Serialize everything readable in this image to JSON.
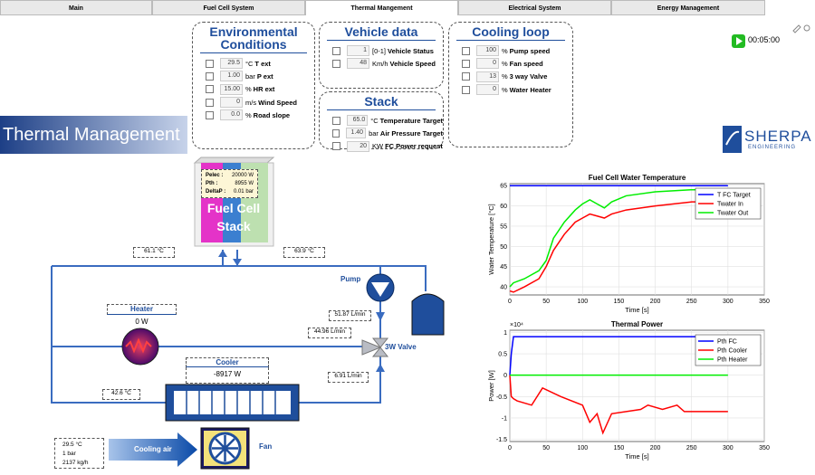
{
  "tabs": [
    "Main",
    "Fuel Cell System",
    "Thermal Mangement",
    "Electrical System",
    "Energy Management"
  ],
  "timer": "00:05:00",
  "banner": "Thermal Management",
  "logo": {
    "name": "SHERPA",
    "tagline": "ENGINEERING"
  },
  "panels": [
    {
      "title": "Environmental Conditions",
      "rows": [
        {
          "value": "29.5",
          "unit": "°C",
          "label": "T ext"
        },
        {
          "value": "1.00",
          "unit": "bar",
          "label": "P ext"
        },
        {
          "value": "15.00",
          "unit": "%",
          "label": "HR ext"
        },
        {
          "value": "0",
          "unit": "m/s",
          "label": "Wind Speed"
        },
        {
          "value": "0.0",
          "unit": "%",
          "label": "Road slope"
        }
      ]
    },
    {
      "title": "Vehicle data",
      "rows": [
        {
          "value": "1",
          "unit": "[0-1]",
          "label": "Vehicle Status"
        },
        {
          "value": "48",
          "unit": "Km/h",
          "label": "Vehicle Speed"
        }
      ]
    },
    {
      "title": "Stack",
      "rows": [
        {
          "value": "65.0",
          "unit": "°C",
          "label": "Temperature Target"
        },
        {
          "value": "1.40",
          "unit": "bar",
          "label": "Air Pressure Target"
        },
        {
          "value": "20",
          "unit": "KW",
          "label": "FC Power request"
        }
      ]
    },
    {
      "title": "Cooling loop",
      "rows": [
        {
          "value": "100",
          "unit": "%",
          "label": "Pump speed"
        },
        {
          "value": "0",
          "unit": "%",
          "label": "Fan speed"
        },
        {
          "value": "13",
          "unit": "%",
          "label": "3 way Valve"
        },
        {
          "value": "0",
          "unit": "%",
          "label": "Water Heater"
        }
      ]
    }
  ],
  "diagram": {
    "stack_info": [
      {
        "label": "Pelec :",
        "value": "20000 W"
      },
      {
        "label": "Pth :",
        "value": "8955 W"
      },
      {
        "label": "DeltaP :",
        "value": "0.01 bar"
      }
    ],
    "stack": "Fuel Cell Stack",
    "t_stack_in": "61.1 °C",
    "t_stack_out": "63.9 °C",
    "pump": "Pump",
    "heater": "Heater",
    "heater_power": "0 W",
    "flow_pump": "51.87 L/min",
    "flow_heater": "44.96 L/min",
    "valve": "3W Valve",
    "cooler": "Cooler",
    "cooler_power": "-8917 W",
    "flow_cooler": "6.91 L/min",
    "t_cooler_out": "42.6 °C",
    "air_in": [
      "29.5 °C",
      "1 bar",
      "2137 kg/h"
    ],
    "cooling_air": "Cooling air",
    "fan": "Fan"
  },
  "chart_data": [
    {
      "type": "line",
      "title": "Fuel Cell Water Temperature",
      "xlabel": "Time [s]",
      "ylabel": "Water Temperature [°C]",
      "x": [
        0,
        5,
        20,
        40,
        50,
        60,
        75,
        90,
        100,
        110,
        120,
        130,
        140,
        160,
        200,
        250,
        300
      ],
      "series": [
        {
          "name": "T FC Target",
          "color": "#0000ff",
          "values": [
            65,
            65,
            65,
            65,
            65,
            65,
            65,
            65,
            65,
            65,
            65,
            65,
            65,
            65,
            65,
            65,
            65
          ]
        },
        {
          "name": "Twater  In",
          "color": "#ff0000",
          "values": [
            39,
            38.7,
            40,
            42,
            45,
            49,
            53,
            56,
            57,
            58,
            57.5,
            57,
            58,
            59,
            60,
            61,
            61
          ]
        },
        {
          "name": "Twater  Out",
          "color": "#00ee00",
          "values": [
            40,
            41,
            42,
            44,
            46.5,
            52,
            56,
            59,
            60.5,
            61.5,
            60.5,
            59.5,
            61,
            62.5,
            63.5,
            64,
            64
          ]
        }
      ],
      "xlim": [
        0,
        350
      ],
      "ylim": [
        38,
        65.5
      ],
      "xticks": [
        0,
        50,
        100,
        150,
        200,
        250,
        300,
        350
      ],
      "yticks": [
        40,
        45,
        50,
        55,
        60,
        65
      ],
      "grid": true,
      "legend": "upper right"
    },
    {
      "type": "line",
      "title": "Thermal Power",
      "xlabel": "Time [s]",
      "ylabel": "Power [W]",
      "y_multiplier": "×10⁴",
      "x": [
        0,
        2,
        5,
        10,
        30,
        45,
        70,
        100,
        110,
        120,
        128,
        140,
        180,
        190,
        210,
        230,
        240,
        300
      ],
      "series": [
        {
          "name": "Pth  FC",
          "color": "#0000ff",
          "values": [
            0,
            0.5,
            0.9,
            0.9,
            0.9,
            0.9,
            0.9,
            0.9,
            0.9,
            0.9,
            0.9,
            0.9,
            0.9,
            0.9,
            0.9,
            0.9,
            0.9,
            0.9
          ]
        },
        {
          "name": "Pth  Cooler",
          "color": "#ff0000",
          "values": [
            0,
            -0.5,
            -0.55,
            -0.6,
            -0.7,
            -0.3,
            -0.5,
            -0.7,
            -1.1,
            -0.9,
            -1.35,
            -0.9,
            -0.8,
            -0.7,
            -0.8,
            -0.7,
            -0.85,
            -0.85
          ]
        },
        {
          "name": "Pth  Heater",
          "color": "#00ee00",
          "values": [
            0,
            0,
            0,
            0,
            0,
            0,
            0,
            0,
            0,
            0,
            0,
            0,
            0,
            0,
            0,
            0,
            0,
            0
          ]
        }
      ],
      "xlim": [
        0,
        350
      ],
      "ylim": [
        -1.55,
        1.05
      ],
      "xticks": [
        0,
        50,
        100,
        150,
        200,
        250,
        300,
        350
      ],
      "yticks": [
        -1.5,
        -1,
        -0.5,
        0,
        0.5,
        1
      ],
      "grid": true,
      "legend": "upper right"
    }
  ]
}
